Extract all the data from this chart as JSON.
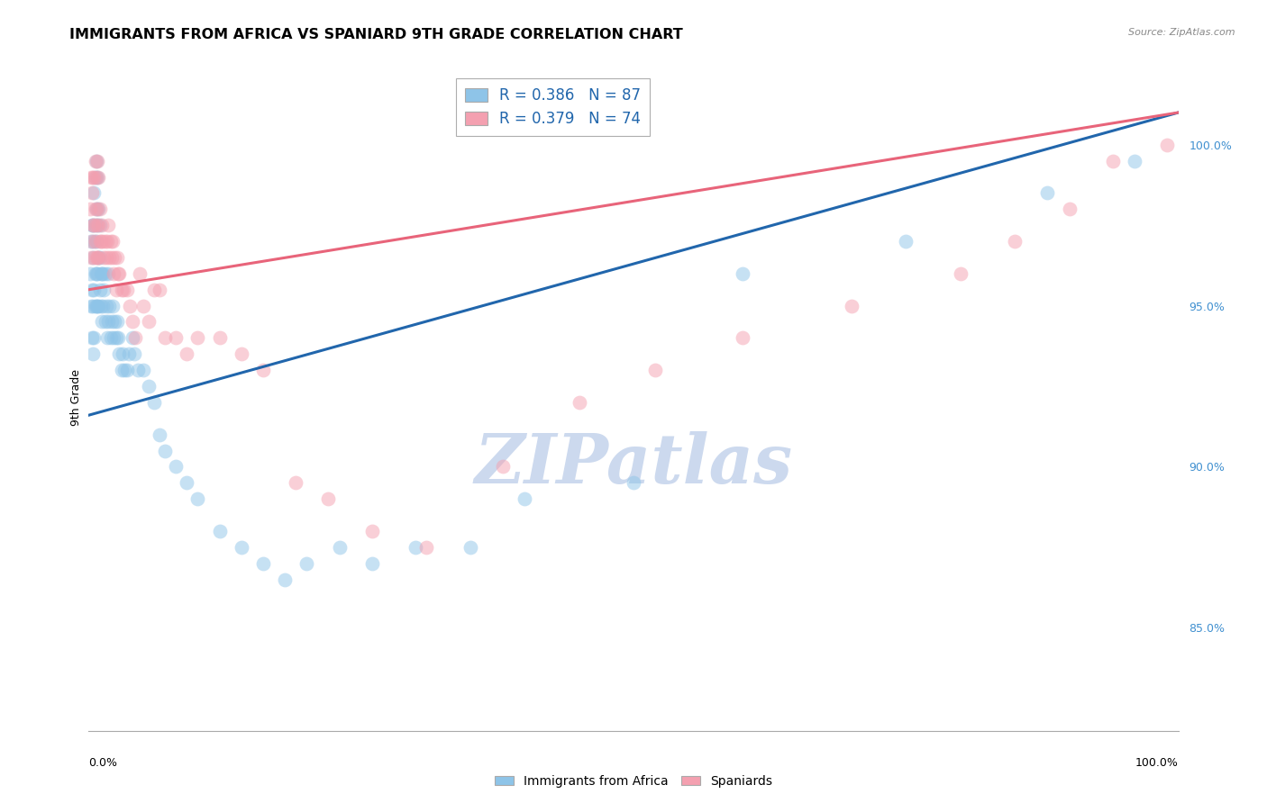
{
  "title": "IMMIGRANTS FROM AFRICA VS SPANIARD 9TH GRADE CORRELATION CHART",
  "source": "Source: ZipAtlas.com",
  "ylabel": "9th Grade",
  "watermark": "ZIPatlas",
  "blue_label": "Immigrants from Africa",
  "pink_label": "Spaniards",
  "blue_R": 0.386,
  "blue_N": 87,
  "pink_R": 0.379,
  "pink_N": 74,
  "blue_color": "#8ec4e8",
  "pink_color": "#f4a0b0",
  "blue_line_color": "#2166ac",
  "pink_line_color": "#e8647a",
  "legend_text_color": "#2166ac",
  "right_axis_color": "#4090d0",
  "ytick_values": [
    0.85,
    0.9,
    0.95,
    1.0
  ],
  "xlim": [
    0.0,
    1.0
  ],
  "ylim": [
    0.818,
    1.025
  ],
  "blue_line_y_start": 0.916,
  "blue_line_y_end": 1.01,
  "pink_line_y_start": 0.955,
  "pink_line_y_end": 1.01,
  "background_color": "#ffffff",
  "grid_color": "#cccccc",
  "title_fontsize": 11.5,
  "axis_label_fontsize": 9,
  "tick_fontsize": 9,
  "legend_fontsize": 12,
  "watermark_color": "#ccd9ee",
  "watermark_fontsize": 55,
  "blue_x": [
    0.001,
    0.002,
    0.002,
    0.003,
    0.003,
    0.003,
    0.004,
    0.004,
    0.004,
    0.004,
    0.005,
    0.005,
    0.005,
    0.005,
    0.006,
    0.006,
    0.006,
    0.006,
    0.007,
    0.007,
    0.007,
    0.007,
    0.007,
    0.008,
    0.008,
    0.008,
    0.008,
    0.009,
    0.009,
    0.009,
    0.01,
    0.01,
    0.01,
    0.011,
    0.011,
    0.012,
    0.012,
    0.013,
    0.013,
    0.014,
    0.015,
    0.015,
    0.016,
    0.017,
    0.018,
    0.018,
    0.019,
    0.02,
    0.021,
    0.022,
    0.023,
    0.024,
    0.025,
    0.026,
    0.027,
    0.028,
    0.03,
    0.031,
    0.033,
    0.035,
    0.037,
    0.04,
    0.042,
    0.045,
    0.05,
    0.055,
    0.06,
    0.065,
    0.07,
    0.08,
    0.09,
    0.1,
    0.12,
    0.14,
    0.16,
    0.18,
    0.2,
    0.23,
    0.26,
    0.3,
    0.35,
    0.4,
    0.5,
    0.6,
    0.75,
    0.88,
    0.96
  ],
  "blue_y": [
    0.96,
    0.95,
    0.97,
    0.94,
    0.955,
    0.975,
    0.935,
    0.95,
    0.965,
    0.975,
    0.94,
    0.955,
    0.97,
    0.985,
    0.95,
    0.96,
    0.975,
    0.99,
    0.95,
    0.96,
    0.97,
    0.98,
    0.995,
    0.95,
    0.96,
    0.975,
    0.99,
    0.95,
    0.965,
    0.98,
    0.955,
    0.965,
    0.975,
    0.95,
    0.96,
    0.945,
    0.96,
    0.95,
    0.96,
    0.955,
    0.945,
    0.96,
    0.95,
    0.94,
    0.945,
    0.96,
    0.95,
    0.94,
    0.945,
    0.95,
    0.94,
    0.945,
    0.94,
    0.945,
    0.94,
    0.935,
    0.93,
    0.935,
    0.93,
    0.93,
    0.935,
    0.94,
    0.935,
    0.93,
    0.93,
    0.925,
    0.92,
    0.91,
    0.905,
    0.9,
    0.895,
    0.89,
    0.88,
    0.875,
    0.87,
    0.865,
    0.87,
    0.875,
    0.87,
    0.875,
    0.875,
    0.89,
    0.895,
    0.96,
    0.97,
    0.985,
    0.995
  ],
  "pink_x": [
    0.001,
    0.002,
    0.002,
    0.003,
    0.003,
    0.004,
    0.004,
    0.005,
    0.005,
    0.005,
    0.006,
    0.006,
    0.006,
    0.007,
    0.007,
    0.007,
    0.008,
    0.008,
    0.008,
    0.009,
    0.009,
    0.009,
    0.01,
    0.01,
    0.011,
    0.012,
    0.013,
    0.014,
    0.015,
    0.016,
    0.017,
    0.018,
    0.019,
    0.02,
    0.021,
    0.022,
    0.023,
    0.024,
    0.025,
    0.026,
    0.027,
    0.028,
    0.03,
    0.032,
    0.035,
    0.038,
    0.04,
    0.043,
    0.047,
    0.05,
    0.055,
    0.06,
    0.065,
    0.07,
    0.08,
    0.09,
    0.1,
    0.12,
    0.14,
    0.16,
    0.19,
    0.22,
    0.26,
    0.31,
    0.38,
    0.45,
    0.52,
    0.6,
    0.7,
    0.8,
    0.85,
    0.9,
    0.94,
    0.99
  ],
  "pink_y": [
    0.98,
    0.965,
    0.99,
    0.97,
    0.985,
    0.975,
    0.99,
    0.965,
    0.975,
    0.99,
    0.97,
    0.98,
    0.995,
    0.965,
    0.975,
    0.99,
    0.965,
    0.98,
    0.995,
    0.965,
    0.975,
    0.99,
    0.97,
    0.98,
    0.97,
    0.975,
    0.97,
    0.965,
    0.97,
    0.965,
    0.97,
    0.975,
    0.965,
    0.97,
    0.965,
    0.97,
    0.96,
    0.965,
    0.955,
    0.965,
    0.96,
    0.96,
    0.955,
    0.955,
    0.955,
    0.95,
    0.945,
    0.94,
    0.96,
    0.95,
    0.945,
    0.955,
    0.955,
    0.94,
    0.94,
    0.935,
    0.94,
    0.94,
    0.935,
    0.93,
    0.895,
    0.89,
    0.88,
    0.875,
    0.9,
    0.92,
    0.93,
    0.94,
    0.95,
    0.96,
    0.97,
    0.98,
    0.995,
    1.0
  ]
}
